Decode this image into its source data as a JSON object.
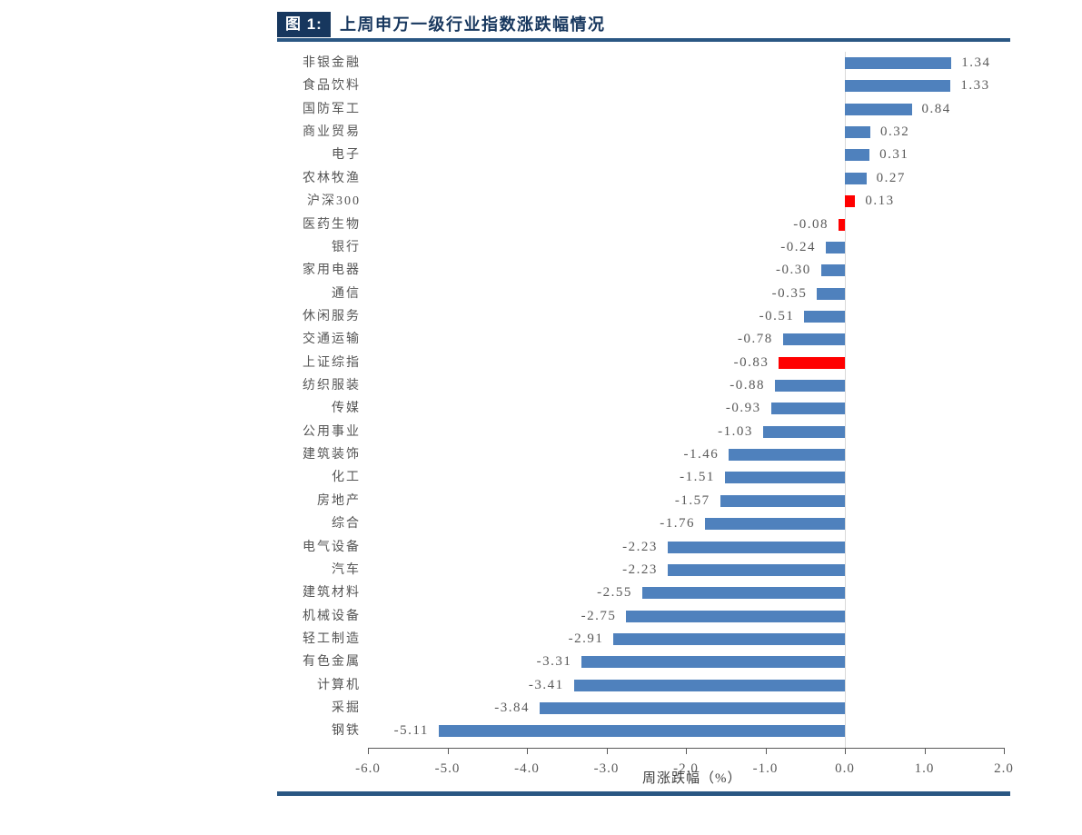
{
  "figure": {
    "label": "图 1:",
    "title": "上周申万一级行业指数涨跌幅情况",
    "accent_color": "#17375E",
    "rule_color": "#2A5783"
  },
  "chart_data": {
    "type": "bar",
    "orientation": "horizontal",
    "title": "上周申万一级行业指数涨跌幅情况",
    "xlabel": "周涨跌幅（%）",
    "ylabel": "",
    "xlim": [
      -6.0,
      2.0
    ],
    "grid": false,
    "categories": [
      "非银金融",
      "食品饮料",
      "国防军工",
      "商业贸易",
      "电子",
      "农林牧渔",
      "沪深300",
      "医药生物",
      "银行",
      "家用电器",
      "通信",
      "休闲服务",
      "交通运输",
      "上证综指",
      "纺织服装",
      "传媒",
      "公用事业",
      "建筑装饰",
      "化工",
      "房地产",
      "综合",
      "电气设备",
      "汽车",
      "建筑材料",
      "机械设备",
      "轻工制造",
      "有色金属",
      "计算机",
      "采掘",
      "钢铁"
    ],
    "values": [
      1.34,
      1.33,
      0.84,
      0.32,
      0.31,
      0.27,
      0.13,
      -0.08,
      -0.24,
      -0.3,
      -0.35,
      -0.51,
      -0.78,
      -0.83,
      -0.88,
      -0.93,
      -1.03,
      -1.46,
      -1.51,
      -1.57,
      -1.76,
      -2.23,
      -2.23,
      -2.55,
      -2.75,
      -2.91,
      -3.31,
      -3.41,
      -3.84,
      -5.11
    ],
    "labels": [
      "1.34",
      "1.33",
      "0.84",
      "0.32",
      "0.31",
      "0.27",
      "0.13",
      "-0.08",
      "-0.24",
      "-0.30",
      "-0.35",
      "-0.51",
      "-0.78",
      "-0.83",
      "-0.88",
      "-0.93",
      "-1.03",
      "-1.46",
      "-1.51",
      "-1.57",
      "-1.76",
      "-2.23",
      "-2.23",
      "-2.55",
      "-2.75",
      "-2.91",
      "-3.31",
      "-3.41",
      "-3.84",
      "-5.11"
    ],
    "x_ticks": [
      "-6.0",
      "-5.0",
      "-4.0",
      "-3.0",
      "-2.0",
      "-1.0",
      "0.0",
      "1.0",
      "2.0"
    ],
    "x_tick_values": [
      -6,
      -5,
      -4,
      -3,
      -2,
      -1,
      0,
      1,
      2
    ],
    "bar_colors": {
      "default": "#4F81BD",
      "highlight": "#FF0000"
    },
    "highlight_indices": [
      6,
      7,
      13
    ],
    "axis_color": "#595959",
    "zero_line_color": "#D9D9D9",
    "label_color": "#595959"
  }
}
